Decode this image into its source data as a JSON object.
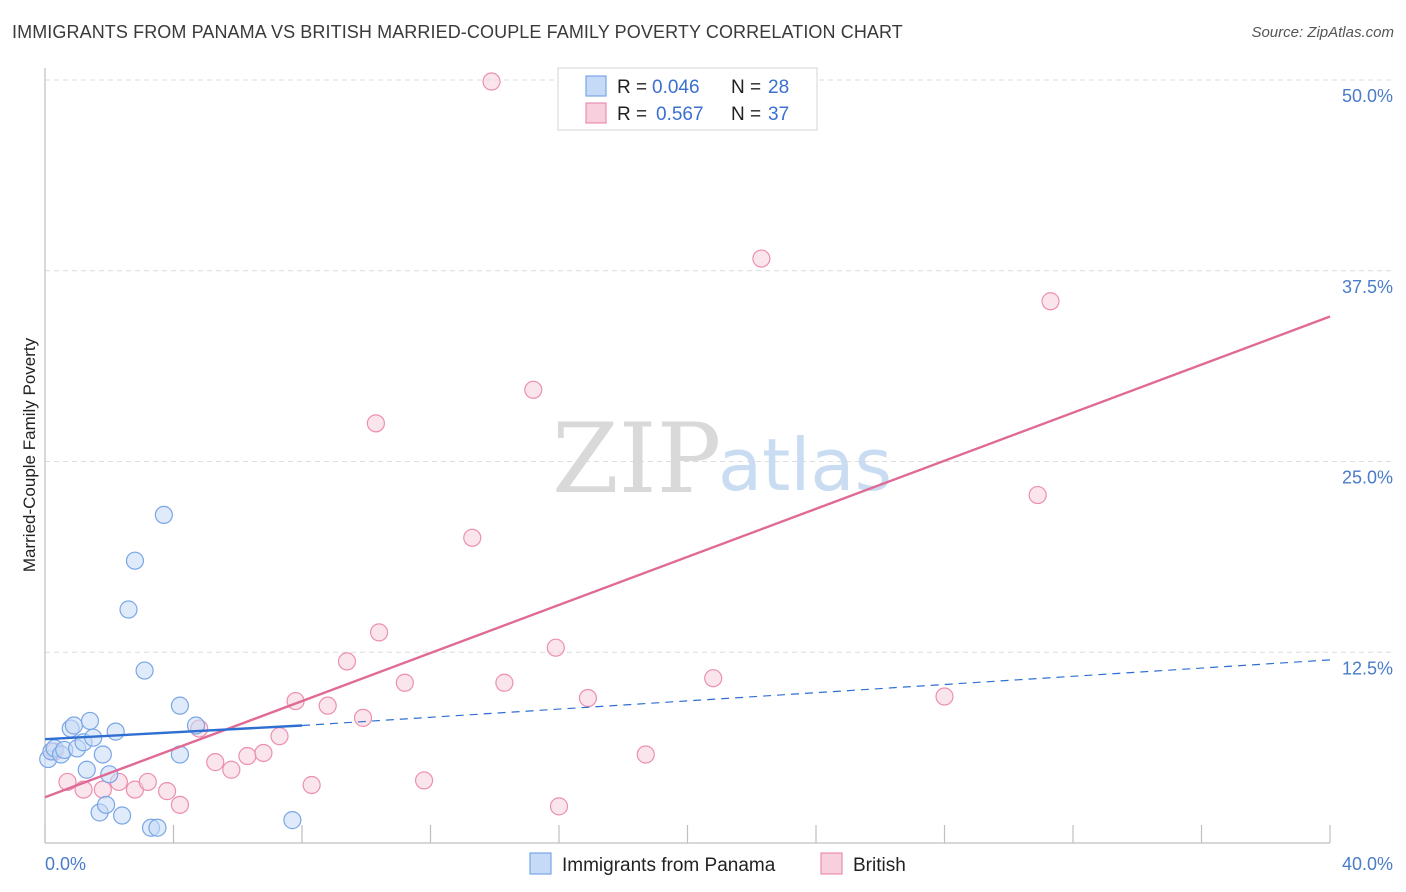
{
  "chart_data": {
    "type": "scatter",
    "title": "IMMIGRANTS FROM PANAMA VS BRITISH MARRIED-COUPLE FAMILY POVERTY CORRELATION CHART",
    "source": "Source: ZipAtlas.com",
    "xlabel": "",
    "ylabel": "Married-Couple Family Poverty",
    "xlim": [
      0,
      40
    ],
    "ylim": [
      0,
      50
    ],
    "x_tick_labels": [
      "0.0%",
      "40.0%"
    ],
    "y_ticks": [
      12.5,
      25.0,
      37.5,
      50.0
    ],
    "y_tick_labels": [
      "12.5%",
      "25.0%",
      "37.5%",
      "50.0%"
    ],
    "watermark": {
      "zip": "ZIP",
      "atlas": "atlas"
    },
    "legend": {
      "rows": [
        {
          "r_label": "R = ",
          "r_value": "0.046",
          "n_label": "N = ",
          "n_value": "28"
        },
        {
          "r_label": "R = ",
          "r_value": "0.567",
          "n_label": "N = ",
          "n_value": "37"
        }
      ]
    },
    "series": [
      {
        "name": "Immigrants from Panama",
        "color": "#7aa6e6",
        "fill": "#c5daf6",
        "trend_color": "#2f6fd1",
        "trend_solid": {
          "x": [
            0,
            8
          ],
          "y": [
            6.8,
            7.7
          ]
        },
        "trend_dashed": {
          "x": [
            8,
            40
          ],
          "y": [
            7.7,
            12.0
          ]
        },
        "points": [
          {
            "x": 0.1,
            "y": 5.5
          },
          {
            "x": 0.2,
            "y": 6.0
          },
          {
            "x": 0.3,
            "y": 6.2
          },
          {
            "x": 0.5,
            "y": 5.8
          },
          {
            "x": 0.6,
            "y": 6.1
          },
          {
            "x": 0.8,
            "y": 7.5
          },
          {
            "x": 0.9,
            "y": 7.7
          },
          {
            "x": 1.0,
            "y": 6.2
          },
          {
            "x": 1.2,
            "y": 6.6
          },
          {
            "x": 1.3,
            "y": 4.8
          },
          {
            "x": 1.4,
            "y": 8.0
          },
          {
            "x": 1.5,
            "y": 6.9
          },
          {
            "x": 1.7,
            "y": 2.0
          },
          {
            "x": 1.8,
            "y": 5.8
          },
          {
            "x": 1.9,
            "y": 2.5
          },
          {
            "x": 2.0,
            "y": 4.5
          },
          {
            "x": 2.2,
            "y": 7.3
          },
          {
            "x": 2.4,
            "y": 1.8
          },
          {
            "x": 2.6,
            "y": 15.3
          },
          {
            "x": 2.8,
            "y": 18.5
          },
          {
            "x": 3.1,
            "y": 11.3
          },
          {
            "x": 3.3,
            "y": 1.0
          },
          {
            "x": 3.5,
            "y": 1.0
          },
          {
            "x": 3.7,
            "y": 21.5
          },
          {
            "x": 4.2,
            "y": 9.0
          },
          {
            "x": 4.2,
            "y": 5.8
          },
          {
            "x": 4.7,
            "y": 7.7
          },
          {
            "x": 7.7,
            "y": 1.5
          }
        ]
      },
      {
        "name": "British",
        "color": "#ec8fb0",
        "fill": "#f8cfdc",
        "trend_color": "#e06a95",
        "trend_line": {
          "x": [
            0,
            40
          ],
          "y": [
            3.0,
            34.5
          ]
        },
        "points": [
          {
            "x": 0.3,
            "y": 6.0
          },
          {
            "x": 0.7,
            "y": 4.0
          },
          {
            "x": 1.2,
            "y": 3.5
          },
          {
            "x": 1.8,
            "y": 3.5
          },
          {
            "x": 2.3,
            "y": 4.0
          },
          {
            "x": 2.8,
            "y": 3.5
          },
          {
            "x": 3.2,
            "y": 4.0
          },
          {
            "x": 3.8,
            "y": 3.4
          },
          {
            "x": 4.2,
            "y": 2.5
          },
          {
            "x": 4.8,
            "y": 7.5
          },
          {
            "x": 5.3,
            "y": 5.3
          },
          {
            "x": 5.8,
            "y": 4.8
          },
          {
            "x": 6.3,
            "y": 5.7
          },
          {
            "x": 6.8,
            "y": 5.9
          },
          {
            "x": 7.3,
            "y": 7.0
          },
          {
            "x": 7.8,
            "y": 9.3
          },
          {
            "x": 8.3,
            "y": 3.8
          },
          {
            "x": 8.8,
            "y": 9.0
          },
          {
            "x": 9.4,
            "y": 11.9
          },
          {
            "x": 9.9,
            "y": 8.2
          },
          {
            "x": 10.3,
            "y": 27.5
          },
          {
            "x": 10.4,
            "y": 13.8
          },
          {
            "x": 11.2,
            "y": 10.5
          },
          {
            "x": 11.8,
            "y": 4.1
          },
          {
            "x": 13.3,
            "y": 20.0
          },
          {
            "x": 13.9,
            "y": 49.9
          },
          {
            "x": 14.3,
            "y": 10.5
          },
          {
            "x": 15.2,
            "y": 29.7
          },
          {
            "x": 15.9,
            "y": 12.8
          },
          {
            "x": 16.0,
            "y": 2.4
          },
          {
            "x": 16.9,
            "y": 9.5
          },
          {
            "x": 18.7,
            "y": 5.8
          },
          {
            "x": 20.8,
            "y": 10.8
          },
          {
            "x": 22.3,
            "y": 38.3
          },
          {
            "x": 28.0,
            "y": 9.6
          },
          {
            "x": 30.9,
            "y": 22.8
          },
          {
            "x": 31.3,
            "y": 35.5
          }
        ]
      }
    ]
  }
}
